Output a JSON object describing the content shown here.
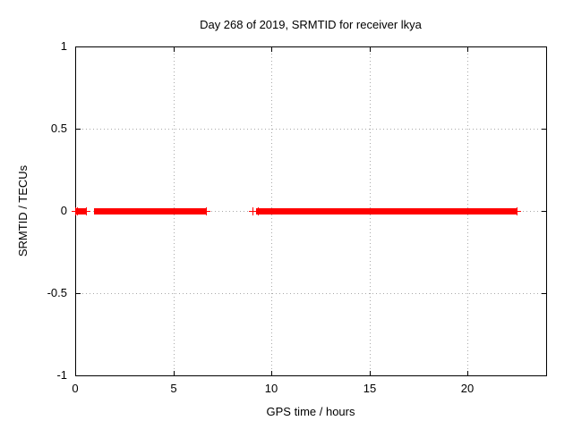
{
  "window": {
    "background": "#ffffff",
    "foreground": "#000000"
  },
  "chart_data": {
    "type": "scatter",
    "title": "Day 268 of 2019, SRMTID for receiver lkya",
    "xlabel": "GPS time / hours",
    "ylabel": "SRMTID / TECUs",
    "xlim": [
      0,
      24
    ],
    "ylim": [
      -1,
      1
    ],
    "xtick_values": [
      0,
      5,
      10,
      15,
      20
    ],
    "xtick_labels": [
      "0",
      "5",
      "10",
      "15",
      "20"
    ],
    "ytick_values": [
      -1,
      -0.5,
      0,
      0.5,
      1
    ],
    "ytick_labels": [
      "-1",
      "-0.5",
      "0",
      "0.5",
      "1"
    ],
    "grid": {
      "enabled": true,
      "x_values": [
        5,
        10,
        15,
        20
      ],
      "y_values": [
        -0.5,
        0,
        0.5
      ],
      "style": "dotted",
      "color": "#a9a9a9"
    },
    "legend": "none",
    "border_color": "#000000",
    "series": [
      {
        "name": "SRMTID",
        "color": "#ff0000",
        "marker": "plus",
        "y_value": 0,
        "dense_segments_hours": [
          [
            0.18,
            0.42
          ],
          [
            1.14,
            6.53
          ],
          [
            9.4,
            14.93
          ],
          [
            15.05,
            22.33
          ]
        ],
        "sparse_points_hours": [
          0.0,
          0.1,
          0.55,
          6.67,
          9.04,
          9.31,
          22.51
        ]
      }
    ]
  }
}
